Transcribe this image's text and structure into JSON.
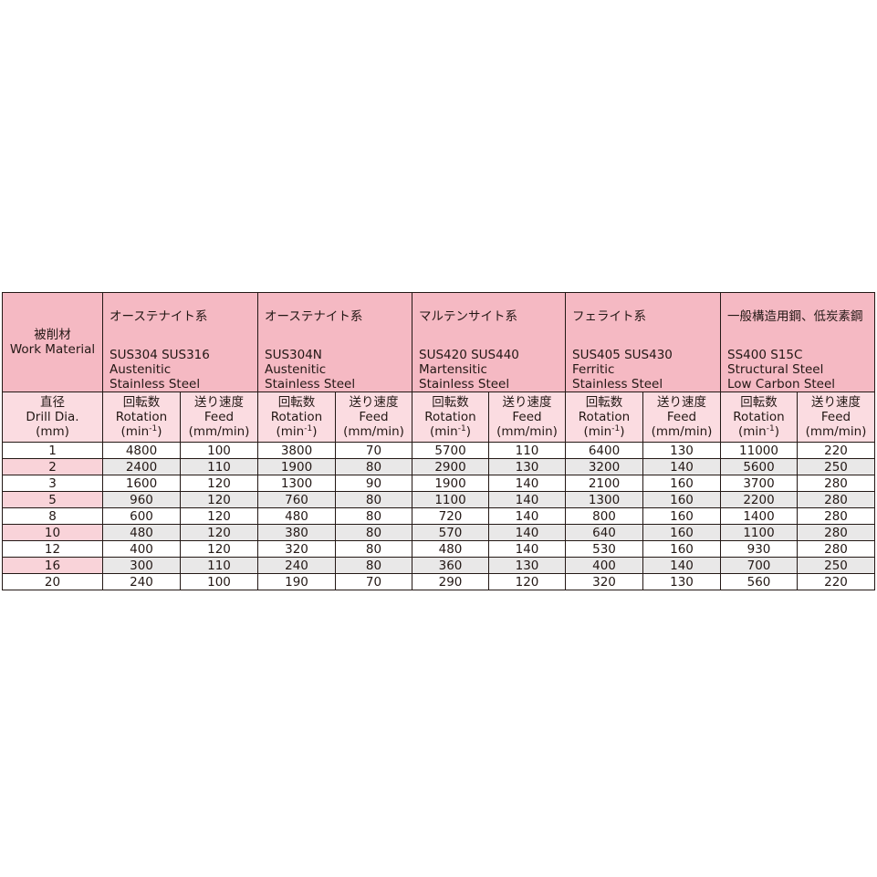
{
  "header": {
    "work_material_jp": "被削材",
    "work_material_en": "Work Material",
    "materials": [
      {
        "jp": "オーステナイト系",
        "code": "SUS304 SUS316",
        "line1": "Austenitic",
        "line2": "Stainless Steel"
      },
      {
        "jp": "オーステナイト系",
        "code": "SUS304N",
        "line1": "Austenitic",
        "line2": "Stainless Steel"
      },
      {
        "jp": "マルテンサイト系",
        "code": "SUS420 SUS440",
        "line1": "Martensitic",
        "line2": "Stainless Steel"
      },
      {
        "jp": "フェライト系",
        "code": "SUS405 SUS430",
        "line1": "Ferritic",
        "line2": "Stainless Steel"
      },
      {
        "jp": "一般構造用鋼、低炭素鋼",
        "code": "SS400 S15C",
        "line1": "Structural Steel",
        "line2": "Low Carbon Steel"
      }
    ]
  },
  "subheader": {
    "dia_jp": "直径",
    "dia_en": "Drill Dia.",
    "dia_unit": "(mm)",
    "rot_jp": "回転数",
    "rot_en": "Rotation",
    "rot_unit": "(min",
    "rot_exp": "-1",
    "rot_close": ")",
    "feed_jp": "送り速度",
    "feed_en": "Feed",
    "feed_unit": "(mm/min)"
  },
  "rows": [
    {
      "dia": "1",
      "values": [
        "4800",
        "100",
        "3800",
        "70",
        "5700",
        "110",
        "6400",
        "130",
        "11000",
        "220"
      ]
    },
    {
      "dia": "2",
      "values": [
        "2400",
        "110",
        "1900",
        "80",
        "2900",
        "130",
        "3200",
        "140",
        "5600",
        "250"
      ]
    },
    {
      "dia": "3",
      "values": [
        "1600",
        "120",
        "1300",
        "90",
        "1900",
        "140",
        "2100",
        "160",
        "3700",
        "280"
      ]
    },
    {
      "dia": "5",
      "values": [
        "960",
        "120",
        "760",
        "80",
        "1100",
        "140",
        "1300",
        "160",
        "2200",
        "280"
      ]
    },
    {
      "dia": "8",
      "values": [
        "600",
        "120",
        "480",
        "80",
        "720",
        "140",
        "800",
        "160",
        "1400",
        "280"
      ]
    },
    {
      "dia": "10",
      "values": [
        "480",
        "120",
        "380",
        "80",
        "570",
        "140",
        "640",
        "160",
        "1100",
        "280"
      ]
    },
    {
      "dia": "12",
      "values": [
        "400",
        "120",
        "320",
        "80",
        "480",
        "140",
        "530",
        "160",
        "930",
        "280"
      ]
    },
    {
      "dia": "16",
      "values": [
        "300",
        "110",
        "240",
        "80",
        "360",
        "130",
        "400",
        "140",
        "700",
        "250"
      ]
    },
    {
      "dia": "20",
      "values": [
        "240",
        "100",
        "190",
        "70",
        "290",
        "120",
        "320",
        "130",
        "560",
        "220"
      ]
    }
  ],
  "colors": {
    "header": "#f5b9c3",
    "subheader": "#fbdce1",
    "alt_row": "#e9e8e8",
    "alt_dia": "#f9d3d9"
  }
}
